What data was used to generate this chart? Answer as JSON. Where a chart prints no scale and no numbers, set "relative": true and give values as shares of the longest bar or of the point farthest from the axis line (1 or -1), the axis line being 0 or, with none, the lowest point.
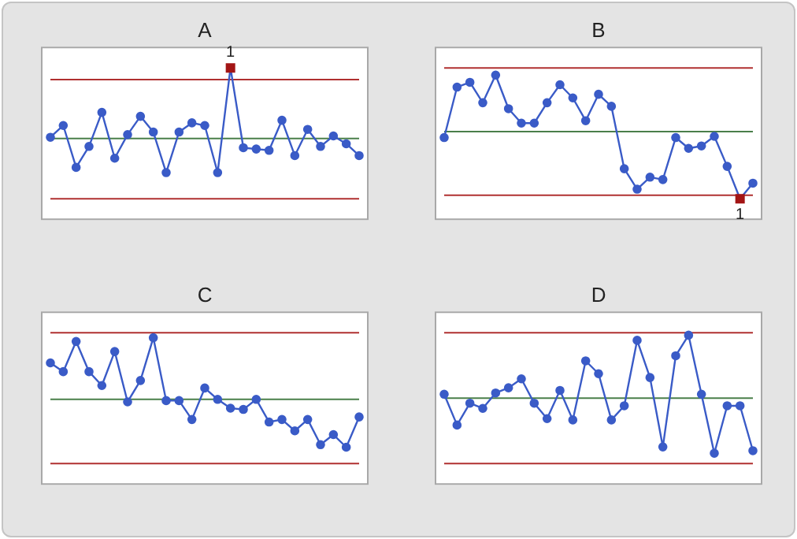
{
  "chart_data": [
    {
      "type": "line",
      "title": "A",
      "relative": true,
      "marker": "circle",
      "categories": [
        null,
        null,
        null,
        null,
        null,
        null,
        null,
        null,
        null,
        null,
        null,
        null,
        null,
        null,
        null,
        null,
        null,
        null,
        null,
        null,
        null,
        null,
        null,
        null,
        null
      ],
      "series": [
        {
          "color": "#3a5bc7",
          "values": [
            0.47,
            0.56,
            0.24,
            0.4,
            0.66,
            0.31,
            0.49,
            0.63,
            0.51,
            0.2,
            0.51,
            0.58,
            0.56,
            0.2,
            1,
            0.39,
            0.38,
            0.37,
            0.6,
            0.33,
            0.53,
            0.4,
            0.48,
            0.42,
            0.33
          ],
          "colors": [
            "#3a5bc7",
            "#3a5bc7",
            "#3a5bc7",
            "#3a5bc7",
            "#3a5bc7",
            "#3a5bc7",
            "#3a5bc7",
            "#3a5bc7",
            "#3a5bc7",
            "#3a5bc7",
            "#3a5bc7",
            "#3a5bc7",
            "#3a5bc7",
            "#3a5bc7",
            "#a31515",
            "#3a5bc7",
            "#3a5bc7",
            "#3a5bc7",
            "#3a5bc7",
            "#3a5bc7",
            "#3a5bc7",
            "#3a5bc7",
            "#3a5bc7",
            "#3a5bc7",
            "#3a5bc7"
          ]
        }
      ],
      "annotations": [
        {
          "text": "1",
          "y": 1
        }
      ],
      "ref_lines": [
        {
          "axis": "y",
          "value": 0.91,
          "color": "#b03030"
        },
        {
          "axis": "y",
          "value": 0.46,
          "color": "#4a7f4a"
        },
        {
          "axis": "y",
          "value": 0,
          "color": "#b03030"
        }
      ]
    },
    {
      "type": "line",
      "title": "B",
      "relative": true,
      "marker": "circle",
      "categories": [
        null,
        null,
        null,
        null,
        null,
        null,
        null,
        null,
        null,
        null,
        null,
        null,
        null,
        null,
        null,
        null,
        null,
        null,
        null,
        null,
        null,
        null,
        null,
        null,
        null
      ],
      "series": [
        {
          "color": "#3a5bc7",
          "values": [
            0.48,
            0.9,
            0.94,
            0.77,
            1,
            0.72,
            0.6,
            0.6,
            0.77,
            0.92,
            0.81,
            0.62,
            0.84,
            0.74,
            0.22,
            0.05,
            0.15,
            0.13,
            0.48,
            0.39,
            0.41,
            0.49,
            0.24,
            -0.03,
            0.1
          ],
          "colors": [
            "#3a5bc7",
            "#3a5bc7",
            "#3a5bc7",
            "#3a5bc7",
            "#3a5bc7",
            "#3a5bc7",
            "#3a5bc7",
            "#3a5bc7",
            "#3a5bc7",
            "#3a5bc7",
            "#3a5bc7",
            "#3a5bc7",
            "#3a5bc7",
            "#3a5bc7",
            "#3a5bc7",
            "#3a5bc7",
            "#3a5bc7",
            "#3a5bc7",
            "#3a5bc7",
            "#3a5bc7",
            "#3a5bc7",
            "#3a5bc7",
            "#3a5bc7",
            "#a31515",
            "#3a5bc7"
          ]
        }
      ],
      "annotations": [
        {
          "text": "1",
          "y": -0.03
        }
      ],
      "ref_lines": [
        {
          "axis": "y",
          "value": 1.06,
          "color": "#b03030"
        },
        {
          "axis": "y",
          "value": 0.53,
          "color": "#4a7f4a"
        },
        {
          "axis": "y",
          "value": 0,
          "color": "#b03030"
        }
      ]
    },
    {
      "type": "line",
      "title": "C",
      "relative": true,
      "marker": "circle",
      "categories": [
        null,
        null,
        null,
        null,
        null,
        null,
        null,
        null,
        null,
        null,
        null,
        null,
        null,
        null,
        null,
        null,
        null,
        null,
        null,
        null,
        null,
        null,
        null,
        null,
        null
      ],
      "series": [
        {
          "color": "#3a5bc7",
          "values": [
            0.8,
            0.73,
            0.97,
            0.73,
            0.62,
            0.89,
            0.49,
            0.66,
            1,
            0.5,
            0.5,
            0.35,
            0.6,
            0.51,
            0.44,
            0.43,
            0.51,
            0.33,
            0.35,
            0.26,
            0.35,
            0.15,
            0.23,
            0.13,
            0.37
          ]
        }
      ],
      "ref_lines": [
        {
          "axis": "y",
          "value": 1.04,
          "color": "#b03030"
        },
        {
          "axis": "y",
          "value": 0.51,
          "color": "#4a7f4a"
        },
        {
          "axis": "y",
          "value": 0,
          "color": "#b03030"
        }
      ]
    },
    {
      "type": "line",
      "title": "D",
      "relative": true,
      "marker": "circle",
      "categories": [
        null,
        null,
        null,
        null,
        null,
        null,
        null,
        null,
        null,
        null,
        null,
        null,
        null,
        null,
        null,
        null,
        null,
        null,
        null,
        null,
        null,
        null,
        null,
        null,
        null
      ],
      "series": [
        {
          "color": "#3a5bc7",
          "values": [
            0.54,
            0.3,
            0.47,
            0.43,
            0.55,
            0.59,
            0.66,
            0.47,
            0.35,
            0.57,
            0.34,
            0.8,
            0.7,
            0.34,
            0.45,
            0.96,
            0.67,
            0.13,
            0.84,
            1,
            0.54,
            0.08,
            0.45,
            0.45,
            0.1
          ]
        }
      ],
      "ref_lines": [
        {
          "axis": "y",
          "value": 1.02,
          "color": "#b03030"
        },
        {
          "axis": "y",
          "value": 0.51,
          "color": "#4a7f4a"
        },
        {
          "axis": "y",
          "value": 0,
          "color": "#b03030"
        }
      ]
    }
  ]
}
